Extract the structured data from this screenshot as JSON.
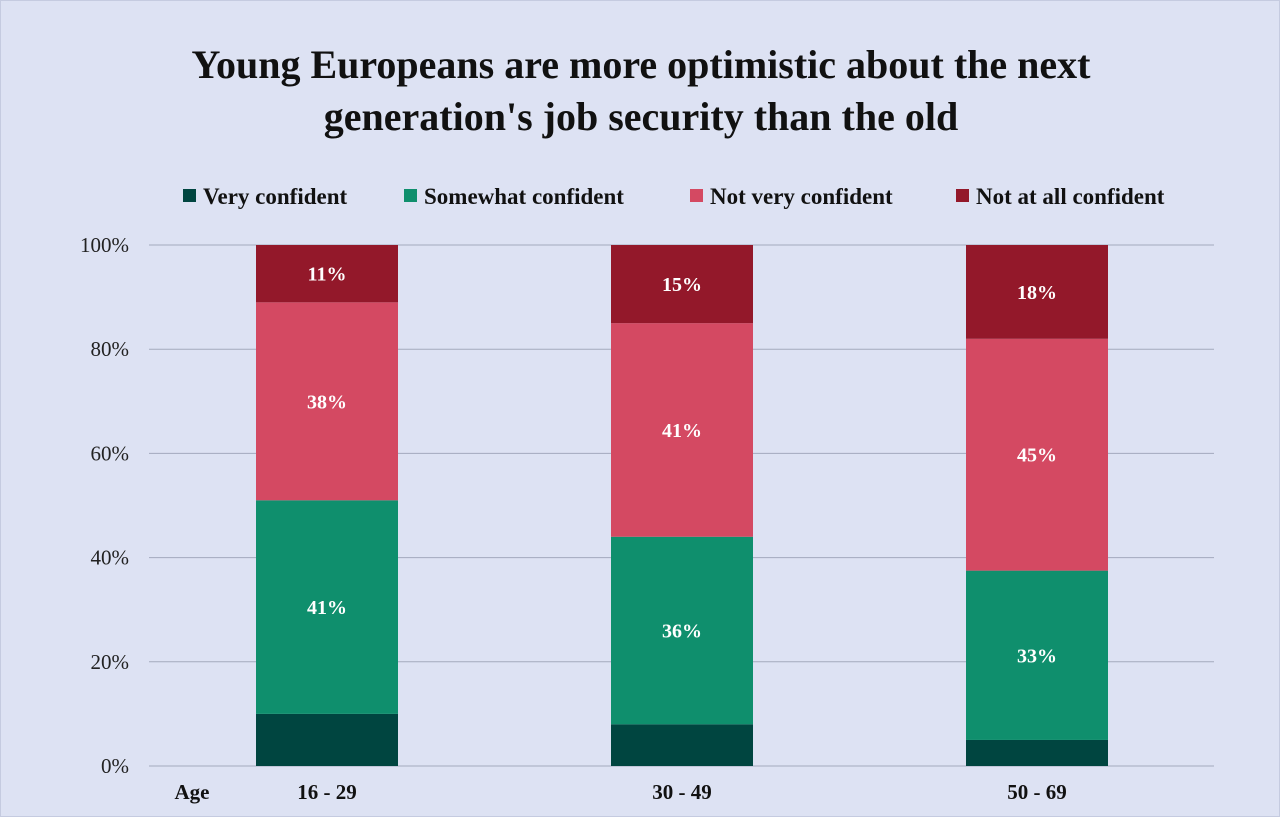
{
  "chart_data": {
    "type": "bar",
    "stacked": true,
    "title_lines": [
      "Young Europeans are more optimistic about the next",
      "generation's job security than the old"
    ],
    "xlabel": "Age",
    "ylabel": "",
    "categories": [
      "16 - 29",
      "30 - 49",
      "50 - 69"
    ],
    "ylim": [
      0,
      100
    ],
    "yticks": [
      0,
      20,
      40,
      60,
      80,
      100
    ],
    "ytick_labels": [
      "0%",
      "20%",
      "40%",
      "60%",
      "80%",
      "100%"
    ],
    "grid": true,
    "legend_position": "top",
    "series": [
      {
        "name": "Very confident",
        "color": "#004540",
        "values": [
          10,
          8,
          5
        ],
        "labels": [
          "",
          "",
          ""
        ]
      },
      {
        "name": "Somewhat confident",
        "color": "#0f8f6d",
        "values": [
          41,
          36,
          32.5
        ],
        "labels": [
          "41%",
          "36%",
          "33%"
        ]
      },
      {
        "name": "Not very confident",
        "color": "#d44962",
        "values": [
          38,
          41,
          44.5
        ],
        "labels": [
          "38%",
          "41%",
          "45%"
        ]
      },
      {
        "name": "Not at all confident",
        "color": "#93182a",
        "values": [
          11,
          15,
          18
        ],
        "labels": [
          "11%",
          "15%",
          "18%"
        ]
      }
    ]
  }
}
